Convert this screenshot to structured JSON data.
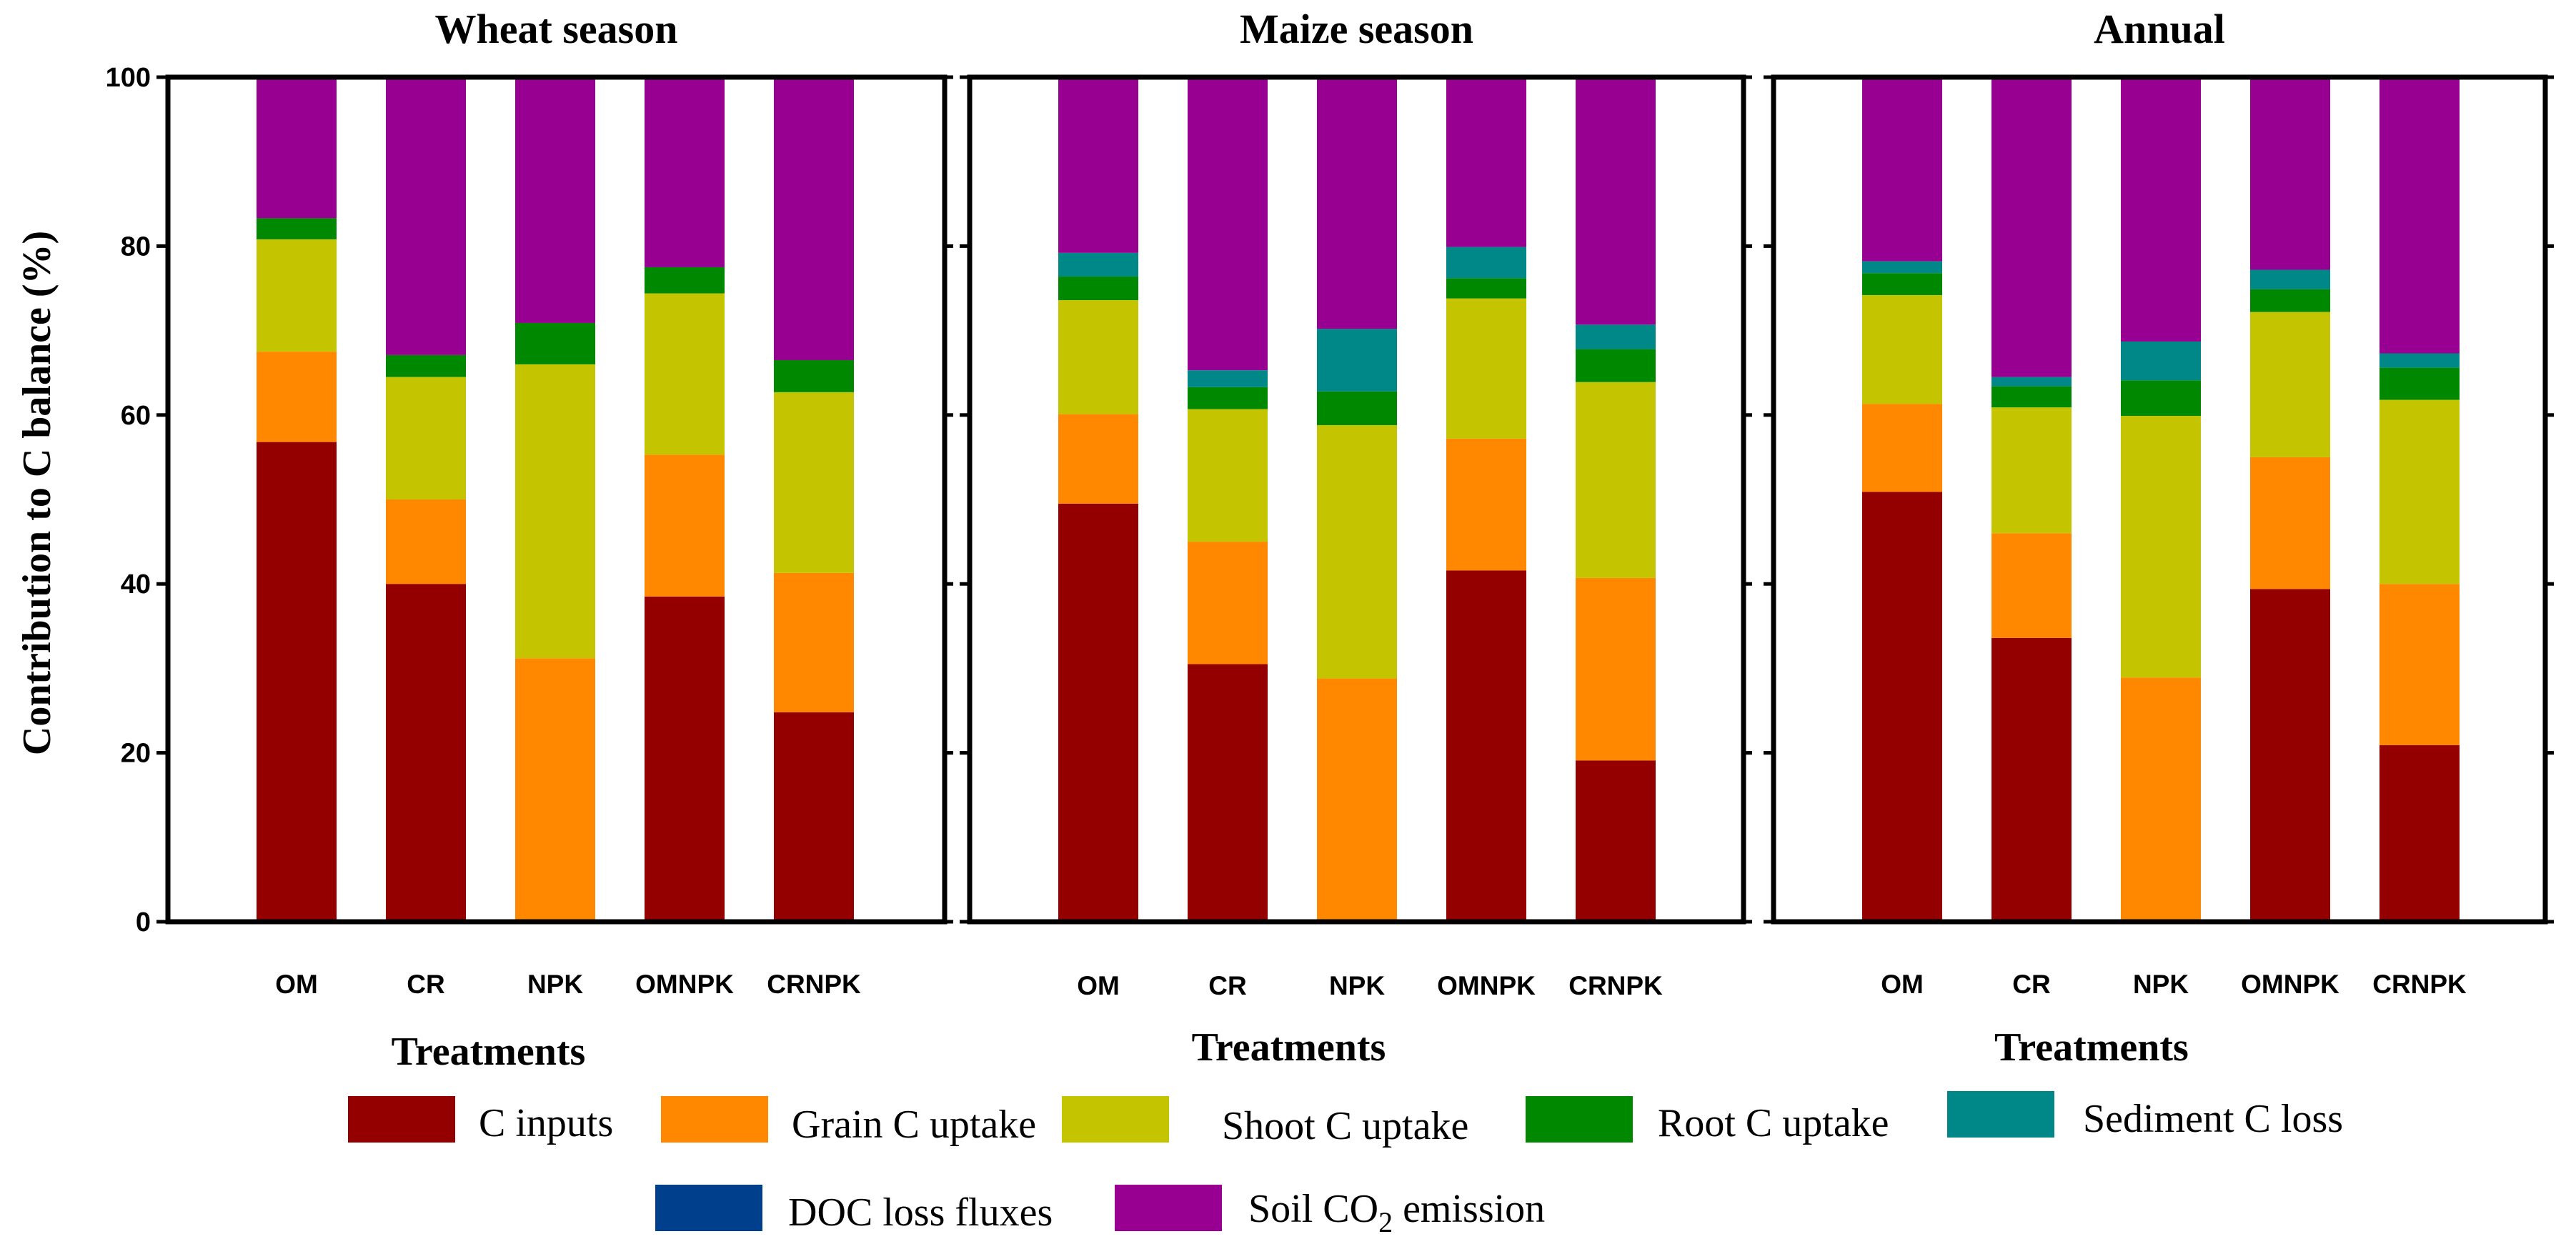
{
  "chart_data": {
    "type": "bar",
    "stacked": true,
    "ylabel": "Contribution to C balance (%)",
    "xlabel": "Treatments",
    "ylim": [
      0,
      100
    ],
    "yticks": [
      0,
      20,
      40,
      60,
      80,
      100
    ],
    "categories": [
      "OM",
      "CR",
      "NPK",
      "OMNPK",
      "CRNPK"
    ],
    "series_colors": [
      "#940000",
      "#FF8800",
      "#C4C400",
      "#008800",
      "#008888",
      "#003F8C",
      "#970090"
    ],
    "legend": [
      {
        "label": "C inputs",
        "color": "#940000"
      },
      {
        "label": "Grain C uptake",
        "color": "#FF8800"
      },
      {
        "label": "Shoot C uptake",
        "color": "#C4C400"
      },
      {
        "label": "Root C uptake",
        "color": "#008800"
      },
      {
        "label": "Sediment C loss",
        "color": "#008888"
      },
      {
        "label": "DOC loss fluxes",
        "color": "#003F8C"
      },
      {
        "label": "Soil CO",
        "sub": "2",
        "tail": " emission",
        "color": "#970090"
      }
    ],
    "panels": [
      {
        "title": "Wheat season",
        "stacks": [
          [
            56.8,
            10.7,
            13.3,
            2.5,
            0,
            0,
            16.7
          ],
          [
            40.0,
            10.0,
            14.5,
            2.6,
            0,
            0,
            32.9
          ],
          [
            0,
            31.2,
            34.8,
            4.9,
            0,
            0,
            29.1
          ],
          [
            38.5,
            16.8,
            19.1,
            3.1,
            0,
            0,
            22.5
          ],
          [
            24.8,
            16.5,
            21.4,
            3.8,
            0,
            0,
            33.5
          ]
        ]
      },
      {
        "title": "Maize season",
        "stacks": [
          [
            49.5,
            10.6,
            13.5,
            2.8,
            2.8,
            0,
            20.8
          ],
          [
            30.5,
            14.5,
            15.7,
            2.6,
            2.0,
            0,
            34.7
          ],
          [
            0,
            28.8,
            30.0,
            4.0,
            7.4,
            0,
            29.8
          ],
          [
            41.6,
            15.6,
            16.6,
            2.4,
            3.7,
            0,
            20.1
          ],
          [
            19.1,
            21.6,
            23.2,
            3.9,
            2.9,
            0,
            29.3
          ]
        ]
      },
      {
        "title": "Annual",
        "stacks": [
          [
            50.9,
            10.4,
            12.9,
            2.6,
            1.4,
            0,
            21.8
          ],
          [
            33.6,
            12.4,
            14.9,
            2.5,
            1.1,
            0,
            35.5
          ],
          [
            0,
            28.9,
            31.0,
            4.2,
            4.6,
            0,
            31.3
          ],
          [
            39.4,
            15.6,
            17.2,
            2.7,
            2.3,
            0,
            22.8
          ],
          [
            20.9,
            19.1,
            21.8,
            3.8,
            1.7,
            0,
            32.7
          ]
        ]
      }
    ]
  }
}
